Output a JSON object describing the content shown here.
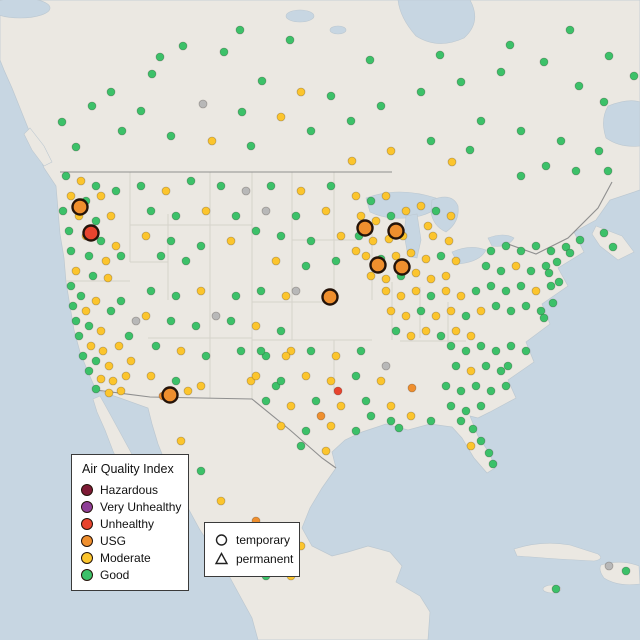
{
  "map": {
    "ocean_color": "#c7d6e2",
    "land_color": "#ebe8e2",
    "state_line_color": "#d6d3cb",
    "border_color": "#8f8f8f",
    "colors": {
      "hazardous": "#7e1a36",
      "very_unhealthy": "#8f3f97",
      "unhealthy": "#e8442e",
      "usg": "#ef8f2e",
      "moderate": "#fcc52d",
      "good": "#3cc169",
      "missing": "#b8b8b8"
    }
  },
  "legend_aqi": {
    "title": "Air Quality Index",
    "items": [
      {
        "label": "Hazardous",
        "color_key": "hazardous"
      },
      {
        "label": "Very Unhealthy",
        "color_key": "very_unhealthy"
      },
      {
        "label": "Unhealthy",
        "color_key": "unhealthy"
      },
      {
        "label": "USG",
        "color_key": "usg"
      },
      {
        "label": "Moderate",
        "color_key": "moderate"
      },
      {
        "label": "Good",
        "color_key": "good"
      }
    ]
  },
  "legend_shape": {
    "items": [
      {
        "label": "temporary",
        "shape": "circle"
      },
      {
        "label": "permanent",
        "shape": "triangle"
      }
    ]
  },
  "chart_data": {
    "type": "scatter",
    "title": "Air Quality Index monitoring stations map (US)",
    "color_key_map": {
      "g": "good",
      "m": "moderate",
      "u": "usg",
      "r": "unhealthy",
      "v": "very_unhealthy",
      "h": "hazardous",
      "x": "missing"
    },
    "points": [
      [
        183,
        46,
        "g"
      ],
      [
        224,
        52,
        "g"
      ],
      [
        152,
        74,
        "g"
      ],
      [
        111,
        92,
        "g"
      ],
      [
        262,
        81,
        "g"
      ],
      [
        301,
        92,
        "m"
      ],
      [
        331,
        96,
        "g"
      ],
      [
        92,
        106,
        "g"
      ],
      [
        141,
        111,
        "g"
      ],
      [
        203,
        104,
        "x"
      ],
      [
        242,
        112,
        "g"
      ],
      [
        281,
        117,
        "m"
      ],
      [
        122,
        131,
        "g"
      ],
      [
        171,
        136,
        "g"
      ],
      [
        212,
        141,
        "m"
      ],
      [
        251,
        146,
        "g"
      ],
      [
        62,
        122,
        "g"
      ],
      [
        76,
        147,
        "g"
      ],
      [
        311,
        131,
        "g"
      ],
      [
        351,
        121,
        "g"
      ],
      [
        381,
        106,
        "g"
      ],
      [
        421,
        92,
        "g"
      ],
      [
        461,
        82,
        "g"
      ],
      [
        501,
        72,
        "g"
      ],
      [
        544,
        62,
        "g"
      ],
      [
        579,
        86,
        "g"
      ],
      [
        604,
        102,
        "g"
      ],
      [
        481,
        121,
        "g"
      ],
      [
        521,
        131,
        "g"
      ],
      [
        561,
        141,
        "g"
      ],
      [
        599,
        151,
        "g"
      ],
      [
        431,
        141,
        "g"
      ],
      [
        391,
        151,
        "m"
      ],
      [
        352,
        161,
        "m"
      ],
      [
        609,
        56,
        "g"
      ],
      [
        634,
        76,
        "g"
      ],
      [
        546,
        166,
        "g"
      ],
      [
        576,
        171,
        "g"
      ],
      [
        521,
        176,
        "g"
      ],
      [
        608,
        171,
        "g"
      ],
      [
        160,
        57,
        "g"
      ],
      [
        240,
        30,
        "g"
      ],
      [
        290,
        40,
        "g"
      ],
      [
        370,
        60,
        "g"
      ],
      [
        440,
        55,
        "g"
      ],
      [
        510,
        45,
        "g"
      ],
      [
        570,
        30,
        "g"
      ],
      [
        452,
        162,
        "m"
      ],
      [
        66,
        176,
        "g"
      ],
      [
        81,
        181,
        "m"
      ],
      [
        96,
        186,
        "g"
      ],
      [
        71,
        196,
        "m"
      ],
      [
        86,
        201,
        "g"
      ],
      [
        101,
        196,
        "m"
      ],
      [
        116,
        191,
        "g"
      ],
      [
        63,
        211,
        "g"
      ],
      [
        79,
        216,
        "m"
      ],
      [
        96,
        221,
        "g"
      ],
      [
        111,
        216,
        "m"
      ],
      [
        69,
        231,
        "g"
      ],
      [
        86,
        236,
        "m"
      ],
      [
        101,
        241,
        "g"
      ],
      [
        116,
        246,
        "m"
      ],
      [
        71,
        251,
        "g"
      ],
      [
        89,
        256,
        "g"
      ],
      [
        106,
        261,
        "m"
      ],
      [
        121,
        256,
        "g"
      ],
      [
        76,
        271,
        "m"
      ],
      [
        93,
        276,
        "g"
      ],
      [
        108,
        278,
        "m"
      ],
      [
        141,
        186,
        "g"
      ],
      [
        166,
        191,
        "m"
      ],
      [
        191,
        181,
        "g"
      ],
      [
        221,
        186,
        "g"
      ],
      [
        246,
        191,
        "x"
      ],
      [
        151,
        211,
        "g"
      ],
      [
        176,
        216,
        "g"
      ],
      [
        206,
        211,
        "m"
      ],
      [
        236,
        216,
        "g"
      ],
      [
        146,
        236,
        "m"
      ],
      [
        171,
        241,
        "g"
      ],
      [
        201,
        246,
        "g"
      ],
      [
        231,
        241,
        "m"
      ],
      [
        256,
        231,
        "g"
      ],
      [
        161,
        256,
        "g"
      ],
      [
        186,
        261,
        "g"
      ],
      [
        71,
        286,
        "g"
      ],
      [
        81,
        296,
        "g"
      ],
      [
        73,
        306,
        "g"
      ],
      [
        86,
        311,
        "m"
      ],
      [
        96,
        301,
        "m"
      ],
      [
        76,
        321,
        "g"
      ],
      [
        89,
        326,
        "g"
      ],
      [
        101,
        331,
        "m"
      ],
      [
        79,
        336,
        "g"
      ],
      [
        91,
        346,
        "m"
      ],
      [
        103,
        351,
        "m"
      ],
      [
        83,
        356,
        "g"
      ],
      [
        96,
        361,
        "g"
      ],
      [
        109,
        366,
        "m"
      ],
      [
        89,
        371,
        "g"
      ],
      [
        101,
        379,
        "m"
      ],
      [
        113,
        381,
        "m"
      ],
      [
        96,
        389,
        "g"
      ],
      [
        109,
        393,
        "m"
      ],
      [
        121,
        391,
        "m"
      ],
      [
        126,
        376,
        "m"
      ],
      [
        131,
        361,
        "m"
      ],
      [
        119,
        346,
        "m"
      ],
      [
        129,
        336,
        "g"
      ],
      [
        136,
        321,
        "x"
      ],
      [
        111,
        311,
        "g"
      ],
      [
        121,
        301,
        "g"
      ],
      [
        151,
        291,
        "g"
      ],
      [
        176,
        296,
        "g"
      ],
      [
        201,
        291,
        "m"
      ],
      [
        146,
        316,
        "m"
      ],
      [
        171,
        321,
        "g"
      ],
      [
        196,
        326,
        "g"
      ],
      [
        216,
        316,
        "x"
      ],
      [
        156,
        346,
        "g"
      ],
      [
        181,
        351,
        "m"
      ],
      [
        206,
        356,
        "g"
      ],
      [
        151,
        376,
        "m"
      ],
      [
        176,
        381,
        "g"
      ],
      [
        201,
        386,
        "m"
      ],
      [
        163,
        396,
        "u"
      ],
      [
        188,
        391,
        "m"
      ],
      [
        236,
        296,
        "g"
      ],
      [
        261,
        291,
        "g"
      ],
      [
        286,
        296,
        "m"
      ],
      [
        231,
        321,
        "g"
      ],
      [
        256,
        326,
        "m"
      ],
      [
        281,
        331,
        "g"
      ],
      [
        241,
        351,
        "g"
      ],
      [
        266,
        356,
        "g"
      ],
      [
        291,
        351,
        "m"
      ],
      [
        251,
        381,
        "m"
      ],
      [
        276,
        386,
        "g"
      ],
      [
        271,
        186,
        "g"
      ],
      [
        301,
        191,
        "m"
      ],
      [
        331,
        186,
        "g"
      ],
      [
        266,
        211,
        "x"
      ],
      [
        296,
        216,
        "g"
      ],
      [
        326,
        211,
        "m"
      ],
      [
        281,
        236,
        "g"
      ],
      [
        311,
        241,
        "g"
      ],
      [
        341,
        236,
        "m"
      ],
      [
        276,
        261,
        "m"
      ],
      [
        306,
        266,
        "g"
      ],
      [
        336,
        261,
        "g"
      ],
      [
        356,
        251,
        "m"
      ],
      [
        356,
        196,
        "m"
      ],
      [
        371,
        201,
        "g"
      ],
      [
        386,
        196,
        "m"
      ],
      [
        361,
        216,
        "m"
      ],
      [
        376,
        221,
        "m"
      ],
      [
        391,
        216,
        "g"
      ],
      [
        406,
        211,
        "m"
      ],
      [
        421,
        206,
        "m"
      ],
      [
        436,
        211,
        "g"
      ],
      [
        451,
        216,
        "m"
      ],
      [
        359,
        236,
        "g"
      ],
      [
        373,
        241,
        "m"
      ],
      [
        389,
        239,
        "m"
      ],
      [
        403,
        236,
        "m"
      ],
      [
        428,
        226,
        "m"
      ],
      [
        433,
        236,
        "m"
      ],
      [
        449,
        241,
        "m"
      ],
      [
        366,
        256,
        "m"
      ],
      [
        381,
        259,
        "g"
      ],
      [
        396,
        256,
        "m"
      ],
      [
        411,
        253,
        "m"
      ],
      [
        426,
        259,
        "m"
      ],
      [
        441,
        256,
        "g"
      ],
      [
        456,
        261,
        "m"
      ],
      [
        371,
        276,
        "m"
      ],
      [
        386,
        279,
        "m"
      ],
      [
        401,
        276,
        "g"
      ],
      [
        416,
        273,
        "m"
      ],
      [
        431,
        279,
        "m"
      ],
      [
        446,
        276,
        "m"
      ],
      [
        386,
        291,
        "m"
      ],
      [
        401,
        296,
        "m"
      ],
      [
        416,
        291,
        "m"
      ],
      [
        431,
        296,
        "g"
      ],
      [
        446,
        291,
        "m"
      ],
      [
        461,
        296,
        "m"
      ],
      [
        476,
        291,
        "g"
      ],
      [
        391,
        311,
        "m"
      ],
      [
        406,
        316,
        "m"
      ],
      [
        421,
        311,
        "g"
      ],
      [
        436,
        316,
        "m"
      ],
      [
        451,
        311,
        "m"
      ],
      [
        466,
        316,
        "g"
      ],
      [
        481,
        311,
        "m"
      ],
      [
        396,
        331,
        "g"
      ],
      [
        411,
        336,
        "m"
      ],
      [
        426,
        331,
        "m"
      ],
      [
        441,
        336,
        "g"
      ],
      [
        456,
        331,
        "m"
      ],
      [
        471,
        336,
        "m"
      ],
      [
        491,
        251,
        "g"
      ],
      [
        506,
        246,
        "g"
      ],
      [
        521,
        251,
        "g"
      ],
      [
        536,
        246,
        "g"
      ],
      [
        551,
        251,
        "g"
      ],
      [
        566,
        247,
        "g"
      ],
      [
        570,
        253,
        "g"
      ],
      [
        580,
        240,
        "g"
      ],
      [
        486,
        266,
        "g"
      ],
      [
        501,
        271,
        "g"
      ],
      [
        516,
        266,
        "m"
      ],
      [
        531,
        271,
        "g"
      ],
      [
        546,
        266,
        "g"
      ],
      [
        557,
        262,
        "g"
      ],
      [
        549,
        273,
        "g"
      ],
      [
        604,
        233,
        "g"
      ],
      [
        613,
        247,
        "g"
      ],
      [
        491,
        286,
        "g"
      ],
      [
        506,
        291,
        "g"
      ],
      [
        521,
        286,
        "g"
      ],
      [
        536,
        291,
        "m"
      ],
      [
        551,
        286,
        "g"
      ],
      [
        559,
        282,
        "g"
      ],
      [
        496,
        306,
        "g"
      ],
      [
        511,
        311,
        "g"
      ],
      [
        526,
        306,
        "g"
      ],
      [
        541,
        311,
        "g"
      ],
      [
        553,
        303,
        "g"
      ],
      [
        544,
        318,
        "g"
      ],
      [
        470,
        150,
        "g"
      ],
      [
        451,
        346,
        "g"
      ],
      [
        466,
        351,
        "g"
      ],
      [
        481,
        346,
        "g"
      ],
      [
        496,
        351,
        "g"
      ],
      [
        511,
        346,
        "g"
      ],
      [
        526,
        351,
        "g"
      ],
      [
        456,
        366,
        "g"
      ],
      [
        471,
        371,
        "m"
      ],
      [
        486,
        366,
        "g"
      ],
      [
        501,
        371,
        "g"
      ],
      [
        508,
        366,
        "g"
      ],
      [
        446,
        386,
        "g"
      ],
      [
        461,
        391,
        "g"
      ],
      [
        476,
        386,
        "g"
      ],
      [
        491,
        391,
        "g"
      ],
      [
        506,
        386,
        "g"
      ],
      [
        451,
        406,
        "g"
      ],
      [
        466,
        411,
        "g"
      ],
      [
        481,
        406,
        "g"
      ],
      [
        461,
        421,
        "g"
      ],
      [
        473,
        429,
        "g"
      ],
      [
        481,
        441,
        "g"
      ],
      [
        489,
        453,
        "g"
      ],
      [
        493,
        464,
        "g"
      ],
      [
        471,
        446,
        "m"
      ],
      [
        261,
        351,
        "g"
      ],
      [
        286,
        356,
        "m"
      ],
      [
        311,
        351,
        "g"
      ],
      [
        336,
        356,
        "m"
      ],
      [
        361,
        351,
        "g"
      ],
      [
        256,
        376,
        "m"
      ],
      [
        281,
        381,
        "g"
      ],
      [
        306,
        376,
        "m"
      ],
      [
        331,
        381,
        "m"
      ],
      [
        356,
        376,
        "g"
      ],
      [
        381,
        381,
        "m"
      ],
      [
        266,
        401,
        "g"
      ],
      [
        291,
        406,
        "m"
      ],
      [
        316,
        401,
        "g"
      ],
      [
        341,
        406,
        "m"
      ],
      [
        366,
        401,
        "g"
      ],
      [
        391,
        406,
        "m"
      ],
      [
        281,
        426,
        "m"
      ],
      [
        306,
        431,
        "g"
      ],
      [
        331,
        426,
        "m"
      ],
      [
        356,
        431,
        "g"
      ],
      [
        301,
        446,
        "g"
      ],
      [
        326,
        451,
        "m"
      ],
      [
        338,
        391,
        "r"
      ],
      [
        321,
        416,
        "u"
      ],
      [
        412,
        388,
        "u"
      ],
      [
        371,
        416,
        "g"
      ],
      [
        391,
        421,
        "g"
      ],
      [
        411,
        416,
        "m"
      ],
      [
        431,
        421,
        "g"
      ],
      [
        399,
        428,
        "g"
      ],
      [
        296,
        291,
        "x"
      ],
      [
        386,
        366,
        "x"
      ],
      [
        181,
        441,
        "m"
      ],
      [
        201,
        471,
        "g"
      ],
      [
        221,
        501,
        "m"
      ],
      [
        241,
        531,
        "g"
      ],
      [
        261,
        551,
        "m"
      ],
      [
        281,
        561,
        "g"
      ],
      [
        301,
        546,
        "m"
      ],
      [
        266,
        576,
        "g"
      ],
      [
        256,
        521,
        "u"
      ],
      [
        291,
        576,
        "m"
      ],
      [
        609,
        566,
        "x"
      ],
      [
        626,
        571,
        "g"
      ],
      [
        556,
        589,
        "g"
      ]
    ],
    "highlighted_points": [
      [
        80,
        207,
        "u"
      ],
      [
        91,
        233,
        "r"
      ],
      [
        365,
        228,
        "u"
      ],
      [
        396,
        231,
        "u"
      ],
      [
        378,
        265,
        "u"
      ],
      [
        402,
        267,
        "u"
      ],
      [
        330,
        297,
        "u"
      ],
      [
        170,
        395,
        "u"
      ]
    ]
  }
}
